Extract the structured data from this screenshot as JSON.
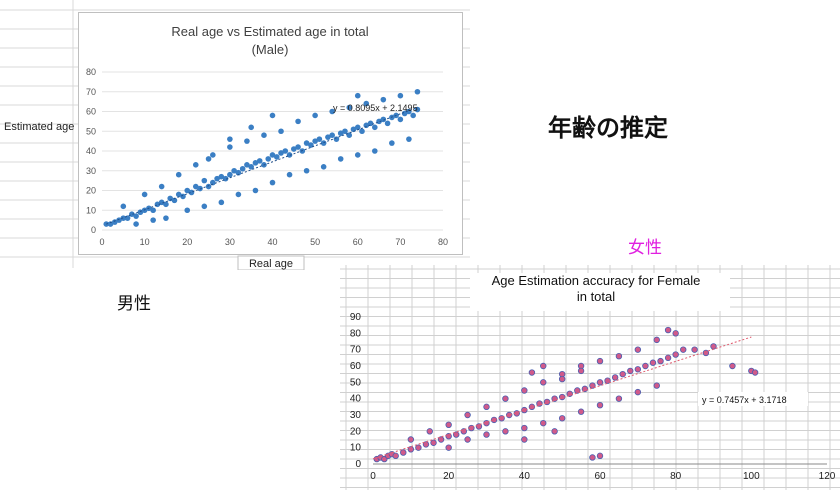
{
  "page": {
    "heading": "年齢の推定",
    "male_label": "男性",
    "female_label": "女性",
    "female_label_color": "#e020e0"
  },
  "chart_data": [
    {
      "type": "scatter",
      "title": "Real age vs Estimated age in total",
      "subtitle": "(Male)",
      "xlabel": "Real age",
      "ylabel": "Estimated age",
      "xlim": [
        0,
        80
      ],
      "ylim": [
        0,
        80
      ],
      "xticks": [
        0,
        10,
        20,
        30,
        40,
        50,
        60,
        70,
        80
      ],
      "yticks": [
        0,
        10,
        20,
        30,
        40,
        50,
        60,
        70,
        80
      ],
      "x_range_of_points": [
        1,
        74
      ],
      "trendline": {
        "equation": "y = 0.8095x + 2.1495",
        "slope": 0.8095,
        "intercept": 2.1495,
        "style": "dotted"
      },
      "marker_color": "#3b7fc4",
      "grid": "horizontal",
      "points_sample": [
        [
          1,
          3
        ],
        [
          2,
          3
        ],
        [
          3,
          4
        ],
        [
          4,
          5
        ],
        [
          5,
          6
        ],
        [
          6,
          6
        ],
        [
          7,
          8
        ],
        [
          8,
          7
        ],
        [
          9,
          9
        ],
        [
          10,
          10
        ],
        [
          11,
          11
        ],
        [
          12,
          10
        ],
        [
          13,
          13
        ],
        [
          14,
          14
        ],
        [
          15,
          13
        ],
        [
          16,
          16
        ],
        [
          17,
          15
        ],
        [
          18,
          18
        ],
        [
          19,
          17
        ],
        [
          20,
          20
        ],
        [
          21,
          19
        ],
        [
          22,
          22
        ],
        [
          23,
          21
        ],
        [
          24,
          25
        ],
        [
          25,
          22
        ],
        [
          26,
          24
        ],
        [
          27,
          26
        ],
        [
          28,
          27
        ],
        [
          29,
          26
        ],
        [
          30,
          28
        ],
        [
          31,
          30
        ],
        [
          32,
          29
        ],
        [
          33,
          31
        ],
        [
          34,
          33
        ],
        [
          35,
          32
        ],
        [
          36,
          34
        ],
        [
          37,
          35
        ],
        [
          38,
          33
        ],
        [
          39,
          36
        ],
        [
          40,
          38
        ],
        [
          41,
          37
        ],
        [
          42,
          39
        ],
        [
          43,
          40
        ],
        [
          44,
          38
        ],
        [
          45,
          41
        ],
        [
          46,
          42
        ],
        [
          47,
          40
        ],
        [
          48,
          44
        ],
        [
          49,
          43
        ],
        [
          50,
          45
        ],
        [
          51,
          46
        ],
        [
          52,
          44
        ],
        [
          53,
          47
        ],
        [
          54,
          48
        ],
        [
          55,
          46
        ],
        [
          56,
          49
        ],
        [
          57,
          50
        ],
        [
          58,
          48
        ],
        [
          59,
          51
        ],
        [
          60,
          52
        ],
        [
          61,
          50
        ],
        [
          62,
          53
        ],
        [
          63,
          54
        ],
        [
          64,
          52
        ],
        [
          65,
          55
        ],
        [
          66,
          56
        ],
        [
          67,
          54
        ],
        [
          68,
          57
        ],
        [
          69,
          58
        ],
        [
          70,
          56
        ],
        [
          71,
          59
        ],
        [
          72,
          60
        ],
        [
          73,
          58
        ],
        [
          74,
          61
        ],
        [
          5,
          12
        ],
        [
          8,
          3
        ],
        [
          10,
          18
        ],
        [
          12,
          5
        ],
        [
          14,
          22
        ],
        [
          15,
          6
        ],
        [
          18,
          28
        ],
        [
          20,
          10
        ],
        [
          22,
          33
        ],
        [
          24,
          12
        ],
        [
          26,
          38
        ],
        [
          28,
          14
        ],
        [
          30,
          42
        ],
        [
          32,
          18
        ],
        [
          34,
          45
        ],
        [
          36,
          20
        ],
        [
          38,
          48
        ],
        [
          40,
          24
        ],
        [
          42,
          50
        ],
        [
          44,
          28
        ],
        [
          46,
          55
        ],
        [
          48,
          30
        ],
        [
          50,
          58
        ],
        [
          52,
          32
        ],
        [
          54,
          60
        ],
        [
          56,
          36
        ],
        [
          58,
          62
        ],
        [
          60,
          38
        ],
        [
          62,
          64
        ],
        [
          64,
          40
        ],
        [
          66,
          66
        ],
        [
          68,
          44
        ],
        [
          70,
          68
        ],
        [
          72,
          46
        ],
        [
          74,
          70
        ],
        [
          40,
          58
        ],
        [
          30,
          46
        ],
        [
          25,
          36
        ],
        [
          35,
          52
        ],
        [
          60,
          68
        ]
      ]
    },
    {
      "type": "scatter",
      "title": "Age Estimation accuracy for Female",
      "subtitle": "in total",
      "xlim": [
        0,
        120
      ],
      "ylim": [
        0,
        90
      ],
      "xticks": [
        0,
        20,
        40,
        60,
        80,
        100,
        120
      ],
      "yticks": [
        0,
        10,
        20,
        30,
        40,
        50,
        60,
        70,
        80,
        90
      ],
      "trendline": {
        "equation": "y = 0.7457x + 3.1718",
        "slope": 0.7457,
        "intercept": 3.1718,
        "style": "dotted",
        "color": "#e05a6e"
      },
      "marker_color": "#d15a8a",
      "marker_edge": "#4a5fb0",
      "grid": "both",
      "points_sample": [
        [
          1,
          3
        ],
        [
          2,
          4
        ],
        [
          3,
          3
        ],
        [
          4,
          5
        ],
        [
          5,
          6
        ],
        [
          6,
          5
        ],
        [
          8,
          7
        ],
        [
          10,
          9
        ],
        [
          12,
          10
        ],
        [
          14,
          12
        ],
        [
          16,
          13
        ],
        [
          18,
          15
        ],
        [
          20,
          17
        ],
        [
          22,
          18
        ],
        [
          24,
          20
        ],
        [
          26,
          22
        ],
        [
          28,
          23
        ],
        [
          30,
          25
        ],
        [
          32,
          27
        ],
        [
          34,
          28
        ],
        [
          36,
          30
        ],
        [
          38,
          31
        ],
        [
          40,
          33
        ],
        [
          42,
          35
        ],
        [
          44,
          37
        ],
        [
          46,
          38
        ],
        [
          48,
          40
        ],
        [
          50,
          41
        ],
        [
          52,
          43
        ],
        [
          54,
          45
        ],
        [
          56,
          46
        ],
        [
          58,
          48
        ],
        [
          60,
          50
        ],
        [
          62,
          51
        ],
        [
          64,
          53
        ],
        [
          66,
          55
        ],
        [
          68,
          57
        ],
        [
          70,
          58
        ],
        [
          72,
          60
        ],
        [
          74,
          62
        ],
        [
          76,
          63
        ],
        [
          78,
          65
        ],
        [
          80,
          67
        ],
        [
          82,
          70
        ],
        [
          85,
          70
        ],
        [
          88,
          68
        ],
        [
          90,
          72
        ],
        [
          95,
          60
        ],
        [
          100,
          57
        ],
        [
          101,
          56
        ],
        [
          10,
          15
        ],
        [
          15,
          20
        ],
        [
          20,
          24
        ],
        [
          25,
          30
        ],
        [
          30,
          35
        ],
        [
          35,
          40
        ],
        [
          40,
          45
        ],
        [
          45,
          50
        ],
        [
          50,
          55
        ],
        [
          55,
          60
        ],
        [
          60,
          63
        ],
        [
          65,
          66
        ],
        [
          70,
          70
        ],
        [
          75,
          76
        ],
        [
          78,
          82
        ],
        [
          80,
          80
        ],
        [
          20,
          10
        ],
        [
          25,
          15
        ],
        [
          30,
          18
        ],
        [
          35,
          20
        ],
        [
          40,
          22
        ],
        [
          45,
          25
        ],
        [
          50,
          28
        ],
        [
          55,
          32
        ],
        [
          60,
          36
        ],
        [
          65,
          40
        ],
        [
          70,
          44
        ],
        [
          75,
          48
        ],
        [
          60,
          5
        ],
        [
          58,
          4
        ],
        [
          40,
          15
        ],
        [
          45,
          60
        ],
        [
          50,
          52
        ],
        [
          55,
          57
        ],
        [
          42,
          56
        ],
        [
          48,
          20
        ]
      ]
    }
  ]
}
